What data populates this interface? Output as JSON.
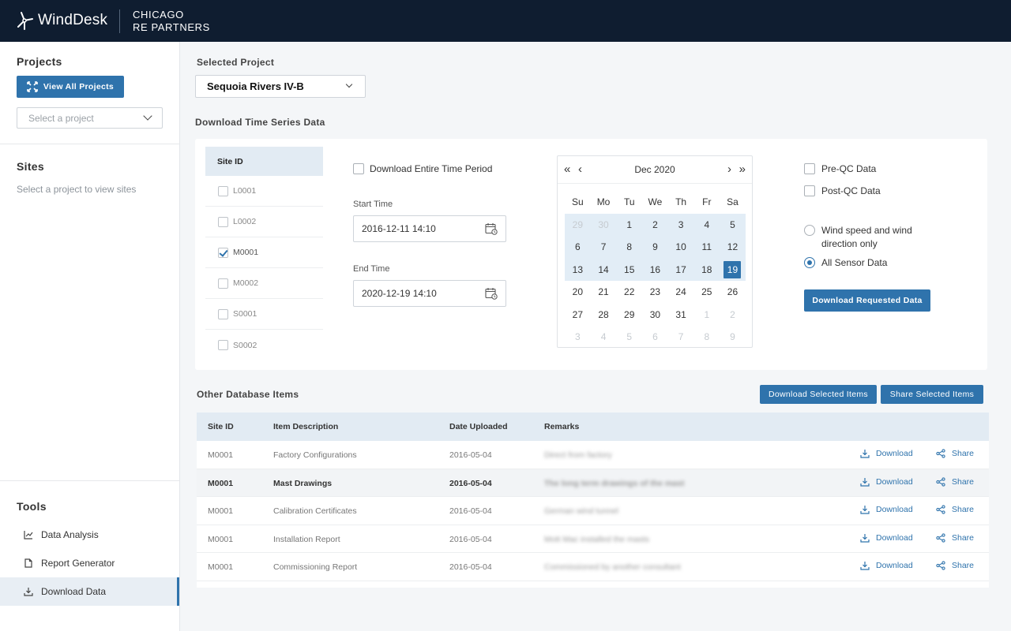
{
  "brand": {
    "name": "WindDesk",
    "client_line1": "CHICAGO",
    "client_line2": "RE PARTNERS"
  },
  "sidebar": {
    "projects_heading": "Projects",
    "view_all_label": "View All Projects",
    "select_project_placeholder": "Select a project",
    "sites_heading": "Sites",
    "sites_empty_text": "Select a project to view sites",
    "tools_heading": "Tools",
    "tools": [
      {
        "label": "Data Analysis",
        "icon": "chart-line-icon"
      },
      {
        "label": "Report Generator",
        "icon": "document-icon"
      },
      {
        "label": "Download Data",
        "icon": "download-icon",
        "active": true
      }
    ]
  },
  "main": {
    "selected_project_label": "Selected Project",
    "selected_project_value": "Sequoia Rivers IV-B",
    "download_ts_heading": "Download Time Series Data",
    "site_id_header": "Site ID",
    "sites": [
      {
        "id": "L0001",
        "checked": false
      },
      {
        "id": "L0002",
        "checked": false
      },
      {
        "id": "M0001",
        "checked": true
      },
      {
        "id": "M0002",
        "checked": false
      },
      {
        "id": "S0001",
        "checked": false
      },
      {
        "id": "S0002",
        "checked": false
      }
    ],
    "entire_period_label": "Download Entire Time Period",
    "start_time_label": "Start Time",
    "start_time_value": "2016-12-11 14:10",
    "end_time_label": "End Time",
    "end_time_value": "2020-12-19 14:10",
    "calendar": {
      "month_label": "Dec 2020",
      "weekdays": [
        "Su",
        "Mo",
        "Tu",
        "We",
        "Th",
        "Fr",
        "Sa"
      ],
      "days": [
        {
          "d": "29",
          "other": true,
          "range": true
        },
        {
          "d": "30",
          "other": true,
          "range": true
        },
        {
          "d": "1",
          "range": true
        },
        {
          "d": "2",
          "range": true
        },
        {
          "d": "3",
          "range": true
        },
        {
          "d": "4",
          "range": true
        },
        {
          "d": "5",
          "range": true
        },
        {
          "d": "6",
          "range": true
        },
        {
          "d": "7",
          "range": true
        },
        {
          "d": "8",
          "range": true
        },
        {
          "d": "9",
          "range": true
        },
        {
          "d": "10",
          "range": true
        },
        {
          "d": "11",
          "range": true
        },
        {
          "d": "12",
          "range": true
        },
        {
          "d": "13",
          "range": true
        },
        {
          "d": "14",
          "range": true
        },
        {
          "d": "15",
          "range": true
        },
        {
          "d": "16",
          "range": true
        },
        {
          "d": "17",
          "range": true
        },
        {
          "d": "18",
          "range": true
        },
        {
          "d": "19",
          "selected": true
        },
        {
          "d": "20"
        },
        {
          "d": "21"
        },
        {
          "d": "22"
        },
        {
          "d": "23"
        },
        {
          "d": "24"
        },
        {
          "d": "25"
        },
        {
          "d": "26"
        },
        {
          "d": "27"
        },
        {
          "d": "28"
        },
        {
          "d": "29"
        },
        {
          "d": "30"
        },
        {
          "d": "31"
        },
        {
          "d": "1",
          "other": true
        },
        {
          "d": "2",
          "other": true
        },
        {
          "d": "3",
          "other": true
        },
        {
          "d": "4",
          "other": true
        },
        {
          "d": "5",
          "other": true
        },
        {
          "d": "6",
          "other": true
        },
        {
          "d": "7",
          "other": true
        },
        {
          "d": "8",
          "other": true
        },
        {
          "d": "9",
          "other": true
        }
      ]
    },
    "pre_qc_label": "Pre-QC Data",
    "post_qc_label": "Post-QC Data",
    "radio_wind_label_line1": "Wind speed and wind",
    "radio_wind_label_line2": "direction only",
    "radio_all_label": "All Sensor Data",
    "selected_radio": "all",
    "download_requested_label": "Download Requested Data",
    "other_items_heading": "Other Database Items",
    "download_selected_label": "Download Selected Items",
    "share_selected_label": "Share Selected Items",
    "table": {
      "headers": [
        "Site ID",
        "Item Description",
        "Date Uploaded",
        "Remarks"
      ],
      "download_label": "Download",
      "share_label": "Share",
      "rows": [
        {
          "site": "M0001",
          "desc": "Factory Configurations",
          "date": "2016-05-04",
          "remarks": "Direct from factory"
        },
        {
          "site": "M0001",
          "desc": "Mast Drawings",
          "date": "2016-05-04",
          "remarks": "The long term drawings of the mast",
          "highlight": true
        },
        {
          "site": "M0001",
          "desc": "Calibration Certificates",
          "date": "2016-05-04",
          "remarks": "German wind tunnel"
        },
        {
          "site": "M0001",
          "desc": "Installation Report",
          "date": "2016-05-04",
          "remarks": "Mott Mac installed the masts"
        },
        {
          "site": "M0001",
          "desc": "Commissioning Report",
          "date": "2016-05-04",
          "remarks": "Commissioned by another consultant"
        }
      ]
    }
  },
  "colors": {
    "accent": "#2f73ac",
    "topbar": "#0f1d30",
    "header_row": "#e2ebf3"
  }
}
